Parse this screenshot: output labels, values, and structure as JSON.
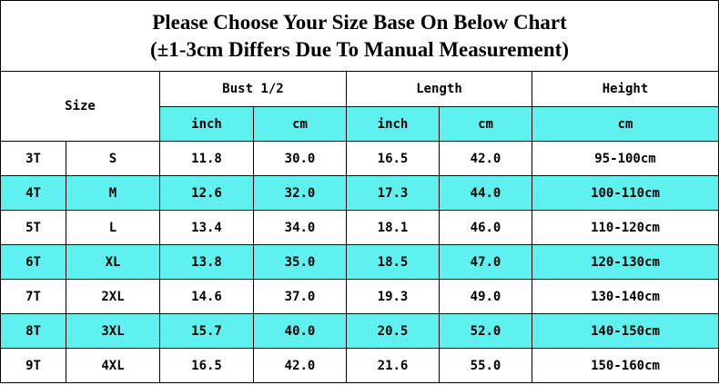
{
  "header": {
    "title_line1": "Please Choose Your Size Base On Below Chart",
    "title_line2": "(±1-3cm Differs Due To Manual Measurement)"
  },
  "table": {
    "columns": [
      "Size",
      "Bust 1/2",
      "Length",
      "Height"
    ],
    "units": [
      "inch",
      "cm",
      "inch",
      "cm",
      "cm"
    ],
    "rows": [
      [
        "3T",
        "S",
        "11.8",
        "30.0",
        "16.5",
        "42.0",
        "95-100cm"
      ],
      [
        "4T",
        "M",
        "12.6",
        "32.0",
        "17.3",
        "44.0",
        "100-110cm"
      ],
      [
        "5T",
        "L",
        "13.4",
        "34.0",
        "18.1",
        "46.0",
        "110-120cm"
      ],
      [
        "6T",
        "XL",
        "13.8",
        "35.0",
        "18.5",
        "47.0",
        "120-130cm"
      ],
      [
        "7T",
        "2XL",
        "14.6",
        "37.0",
        "19.3",
        "49.0",
        "130-140cm"
      ],
      [
        "8T",
        "3XL",
        "15.7",
        "40.0",
        "20.5",
        "52.0",
        "140-150cm"
      ],
      [
        "9T",
        "4XL",
        "16.5",
        "42.0",
        "21.6",
        "55.0",
        "150-160cm"
      ]
    ]
  }
}
